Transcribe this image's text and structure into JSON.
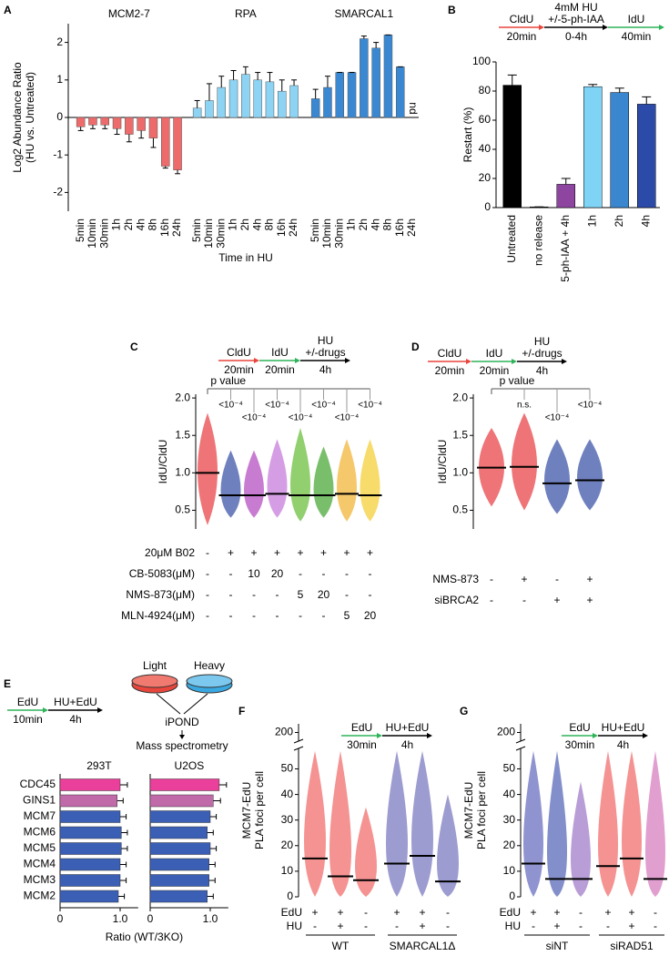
{
  "chart_data": [
    {
      "type": "bar",
      "panel": "A",
      "ylabel": [
        "Log2 Abundance Ratio",
        "(HU vs. Untreated)"
      ],
      "xlabel": "Time in HU",
      "categories": [
        "5min",
        "10min",
        "30min",
        "1h",
        "2h",
        "4h",
        "8h",
        "16h",
        "24h"
      ],
      "series": [
        {
          "name": "MCM2-7",
          "color": "#ee6b6b",
          "values": [
            -0.25,
            -0.2,
            -0.2,
            -0.3,
            -0.45,
            -0.35,
            -0.55,
            -1.3,
            -1.4
          ],
          "errors": [
            0.1,
            0.1,
            0.1,
            0.15,
            0.2,
            0.2,
            0.25,
            0.05,
            0.1
          ]
        },
        {
          "name": "RPA",
          "color": "#8dd3f3",
          "values": [
            0.25,
            0.45,
            0.8,
            1.0,
            1.15,
            1.0,
            0.95,
            0.7,
            0.85
          ],
          "errors": [
            0.2,
            0.45,
            0.3,
            0.25,
            0.2,
            0.2,
            0.25,
            0.3,
            0.15
          ]
        },
        {
          "name": "SMARCAL1",
          "color": "#3b88d2",
          "values": [
            0.5,
            0.8,
            1.2,
            1.2,
            2.1,
            1.85,
            2.2,
            1.35,
            null
          ],
          "errors": [
            0.25,
            0.3,
            0,
            0,
            0.07,
            0.15,
            0,
            0,
            null
          ]
        }
      ],
      "note": "nd",
      "ylim": [
        -2.5,
        2.5
      ],
      "yticks": [
        -2,
        -1,
        0,
        1,
        2
      ]
    },
    {
      "type": "bar",
      "panel": "B",
      "ylabel": [
        "Restart (%)"
      ],
      "protocol": [
        {
          "label": [
            "CldU"
          ],
          "time": "20min",
          "color": "#e8453c"
        },
        {
          "label": [
            "4mM HU",
            "+/-5-ph-IAA"
          ],
          "time": "0-4h",
          "color": "#000000"
        },
        {
          "label": [
            "IdU"
          ],
          "time": "40min",
          "color": "#2fb35a"
        }
      ],
      "categories": [
        "Untreated",
        "no release",
        "5-ph-IAA + 4h",
        "1h",
        "2h",
        "4h"
      ],
      "values": [
        84,
        0.5,
        16,
        83,
        79,
        71
      ],
      "errors": [
        7,
        0,
        4,
        1.5,
        3,
        5
      ],
      "colors": [
        "#000000",
        "#000000",
        "#8e45a0",
        "#7fd3f5",
        "#3a87d0",
        "#2c4aa8"
      ],
      "ylim": [
        0,
        100
      ],
      "yticks": [
        0,
        20,
        40,
        60,
        80,
        100
      ]
    },
    {
      "type": "strip",
      "panel": "C",
      "ylabel": [
        "IdU/CldU"
      ],
      "protocol": [
        {
          "label": [
            "CldU"
          ],
          "time": "20min",
          "color": "#e8453c"
        },
        {
          "label": [
            "IdU"
          ],
          "time": "20min",
          "color": "#2fb35a"
        },
        {
          "label": [
            "HU",
            "+/-drugs"
          ],
          "time": "4h",
          "color": "#000000"
        }
      ],
      "colors": [
        "#e8454a",
        "#3f55a8",
        "#b44fc2",
        "#c77ddb",
        "#6cbf3f",
        "#4caa3a",
        "#f2b53a",
        "#f4cf3a"
      ],
      "values": [
        1.0,
        0.7,
        0.7,
        0.72,
        0.7,
        0.7,
        0.72,
        0.7
      ],
      "low": [
        0.3,
        0.4,
        0.4,
        0.4,
        0.35,
        0.4,
        0.35,
        0.35
      ],
      "high": [
        1.8,
        1.3,
        1.3,
        1.45,
        1.6,
        1.35,
        1.45,
        1.45
      ],
      "p_label": "p value",
      "p_values": [
        "<10⁻⁴",
        "<10⁻⁴",
        "<10⁻⁴",
        "<10⁻⁴",
        "<10⁻⁴",
        "<10⁻⁴",
        "<10⁻⁴"
      ],
      "conditions": [
        {
          "name": "20μM B02",
          "values": [
            "-",
            "+",
            "+",
            "+",
            "+",
            "+",
            "+",
            "+"
          ]
        },
        {
          "name": "CB-5083(μM)",
          "values": [
            "-",
            "-",
            "10",
            "20",
            "-",
            "-",
            "-",
            "-"
          ]
        },
        {
          "name": "NMS-873(μM)",
          "values": [
            "-",
            "-",
            "-",
            "-",
            "5",
            "20",
            "-",
            "-"
          ]
        },
        {
          "name": "MLN-4924(μM)",
          "values": [
            "-",
            "-",
            "-",
            "-",
            "-",
            "-",
            "5",
            "20"
          ]
        }
      ],
      "ylim": [
        0.25,
        2.05
      ],
      "yticks": [
        0.5,
        {
          "value": 1,
          "label": "1.0"
        },
        1.5,
        {
          "value": 2,
          "label": "2.0"
        }
      ]
    },
    {
      "type": "strip",
      "panel": "D",
      "ylabel": [
        "IdU/CldU"
      ],
      "protocol": [
        {
          "label": [
            "CldU"
          ],
          "time": "20min",
          "color": "#e8453c"
        },
        {
          "label": [
            "IdU"
          ],
          "time": "20min",
          "color": "#2fb35a"
        },
        {
          "label": [
            "HU",
            "+/-drugs"
          ],
          "time": "4h",
          "color": "#000000"
        }
      ],
      "colors": [
        "#e8454a",
        "#e8454a",
        "#3f55a8",
        "#3f55a8"
      ],
      "values": [
        1.07,
        1.08,
        0.86,
        0.9
      ],
      "low": [
        0.55,
        0.5,
        0.45,
        0.5
      ],
      "high": [
        1.6,
        1.8,
        1.45,
        1.45
      ],
      "p_label": "p value",
      "p_values": [
        "n.s.",
        "<10⁻⁴",
        "<10⁻⁴"
      ],
      "conditions": [
        {
          "name": "NMS-873",
          "values": [
            "-",
            "+",
            "-",
            "+"
          ]
        },
        {
          "name": "siBRCA2",
          "values": [
            "-",
            "-",
            "+",
            "+"
          ]
        }
      ],
      "ylim": [
        0.25,
        2.05
      ],
      "yticks": [
        0.5,
        {
          "value": 1,
          "label": "1.0"
        },
        1.5,
        {
          "value": 2,
          "label": "2.0"
        }
      ]
    },
    {
      "type": "bar",
      "orientation": "horizontal",
      "panel": "E",
      "xlabel": "Ratio (WT/3KO)",
      "protocol": [
        {
          "label": [
            "EdU"
          ],
          "time": "10min",
          "color": "#2fb35a"
        },
        {
          "label": [
            "HU+EdU"
          ],
          "time": "4h",
          "color": "#000000"
        }
      ],
      "diagram": {
        "light": "Light",
        "heavy": "Heavy",
        "steps": [
          "iPOND",
          "Mass spectrometry"
        ]
      },
      "categories": [
        "CDC45",
        "GINS1",
        "MCM7",
        "MCM6",
        "MCM5",
        "MCM4",
        "MCM3",
        "MCM2"
      ],
      "colors": [
        "#ea3f9a",
        "#c06aaa",
        "#3a5fb5",
        "#3a5fb5",
        "#3a5fb5",
        "#3a5fb5",
        "#3a5fb5",
        "#3a5fb5"
      ],
      "series": [
        {
          "name": "293T",
          "values": [
            1.0,
            0.95,
            1.0,
            1.02,
            1.02,
            1.0,
            1.0,
            0.97
          ],
          "errors": [
            0.12,
            0.1,
            0.1,
            0.1,
            0.1,
            0.1,
            0.1,
            0.1
          ]
        },
        {
          "name": "U2OS",
          "values": [
            1.15,
            1.05,
            1.0,
            0.95,
            1.0,
            0.98,
            0.98,
            0.95
          ],
          "errors": [
            0.12,
            0.12,
            0.1,
            0.1,
            0.1,
            0.1,
            0.1,
            0.1
          ]
        }
      ],
      "xlim": [
        0,
        1.3
      ],
      "xticks": [
        0,
        {
          "value": 1,
          "label": "1.0"
        }
      ]
    },
    {
      "type": "strip",
      "panel": "F",
      "ylabel": [
        "MCM7-EdU",
        "PLA foci per cell"
      ],
      "protocol": [
        {
          "label": [
            "EdU"
          ],
          "time": "30min",
          "color": "#2fb35a"
        },
        {
          "label": [
            "HU+EdU"
          ],
          "time": "4h",
          "color": "#000000"
        }
      ],
      "colors": [
        "#f26d6d",
        "#f26d6d",
        "#f26d6d",
        "#7b7bc2",
        "#7b7bc2",
        "#7b7bc2"
      ],
      "values": [
        15,
        8,
        6.5,
        13,
        16,
        6
      ],
      "low": [
        0,
        0,
        0,
        0,
        0,
        0
      ],
      "high": [
        57,
        57,
        35,
        57,
        57,
        40
      ],
      "conditions": [
        {
          "name": "EdU",
          "values": [
            "+",
            "+",
            "-",
            "+",
            "+",
            "-"
          ]
        },
        {
          "name": "HU",
          "values": [
            "-",
            "+",
            "-",
            "-",
            "+",
            "-"
          ]
        }
      ],
      "groups": [
        "WT",
        "SMARCAL1Δ"
      ],
      "ylim": [
        0,
        205
      ],
      "axis_break": [
        58,
        195
      ],
      "yticks": [
        0,
        10,
        20,
        30,
        40,
        50,
        200
      ]
    },
    {
      "type": "strip",
      "panel": "G",
      "ylabel": [
        "MCM7-EdU",
        "PLA foci per cell"
      ],
      "protocol": [
        {
          "label": [
            "EdU"
          ],
          "time": "30min",
          "color": "#2fb35a"
        },
        {
          "label": [
            "HU+EdU"
          ],
          "time": "4h",
          "color": "#000000"
        }
      ],
      "colors": [
        "#6a6fc0",
        "#5a6ab8",
        "#a07cc8",
        "#f26d6d",
        "#f26d6d",
        "#d77fbf"
      ],
      "values": [
        13,
        7,
        7,
        12,
        15,
        7
      ],
      "low": [
        0,
        0,
        0,
        0,
        0,
        0
      ],
      "high": [
        57,
        57,
        45,
        57,
        57,
        57
      ],
      "conditions": [
        {
          "name": "EdU",
          "values": [
            "+",
            "+",
            "-",
            "+",
            "+",
            "-"
          ]
        },
        {
          "name": "HU",
          "values": [
            "-",
            "+",
            "-",
            "-",
            "+",
            "-"
          ]
        }
      ],
      "groups": [
        "siNT",
        "siRAD51"
      ],
      "ylim": [
        0,
        205
      ],
      "axis_break": [
        58,
        195
      ],
      "yticks": [
        0,
        10,
        20,
        30,
        40,
        50,
        200
      ]
    }
  ]
}
